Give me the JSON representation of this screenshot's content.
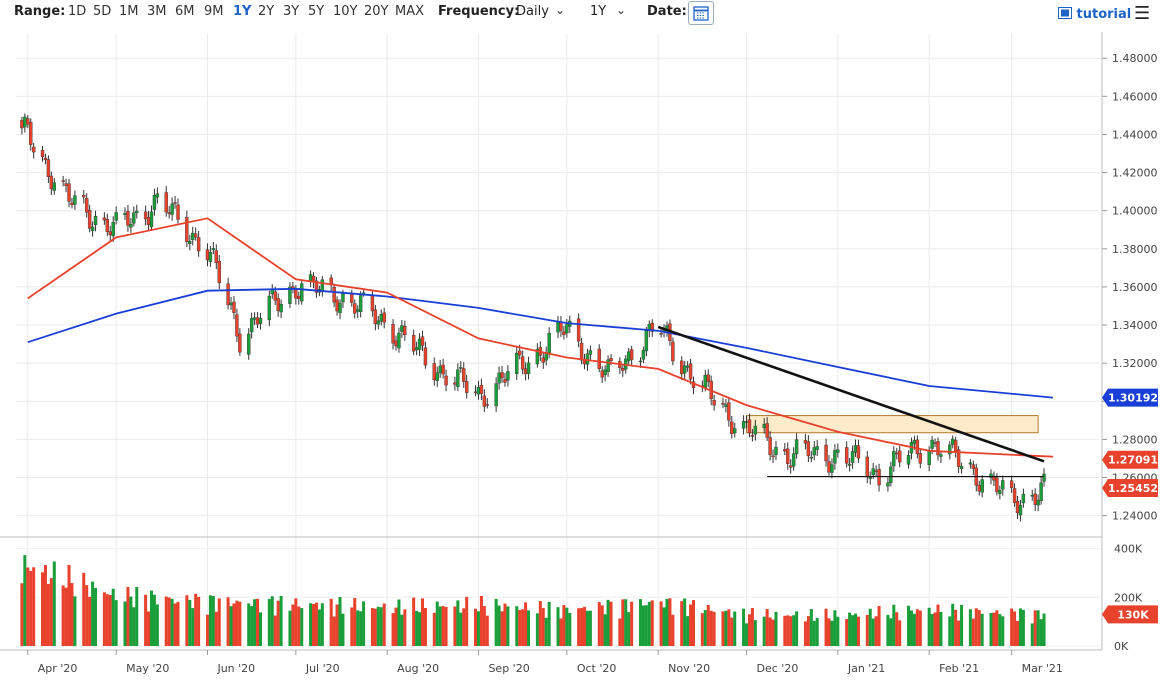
{
  "toolbar": {
    "range_label": "Range:",
    "ranges": [
      "1D",
      "5D",
      "1M",
      "3M",
      "6M",
      "9M",
      "1Y",
      "2Y",
      "3Y",
      "5Y",
      "10Y",
      "20Y",
      "MAX"
    ],
    "active_range": "1Y",
    "frequency_label": "Frequency:",
    "frequency_value": "Daily",
    "period_value": "1Y",
    "date_label": "Date:",
    "tutorial_label": "tutorial"
  },
  "colors": {
    "up": "#1a9e3a",
    "down": "#e8412c",
    "ma_fast": "#e8412c",
    "ma_slow": "#1a3fd6",
    "trendline": "#111111",
    "zone_fill": "#fde9c4",
    "zone_stroke": "#b07a2a",
    "price_badge_blue": "#1a3fd6",
    "price_badge_red": "#e8412c"
  },
  "chart_data": {
    "type": "candlestick",
    "x_axis": {
      "labels": [
        "Apr '20",
        "May '20",
        "Jun '20",
        "Jul '20",
        "Aug '20",
        "Sep '20",
        "Oct '20",
        "Nov '20",
        "Dec '20",
        "Jan '21",
        "Feb '21",
        "Mar '21"
      ]
    },
    "price_axis": {
      "ticks": [
        "1.48000",
        "1.46000",
        "1.44000",
        "1.42000",
        "1.40000",
        "1.38000",
        "1.36000",
        "1.34000",
        "1.32000",
        "1.30000",
        "1.28000",
        "1.26000",
        "1.24000"
      ],
      "ylim": [
        1.2288,
        1.4906
      ]
    },
    "volume_axis": {
      "ticks": [
        "400K",
        "200K",
        "0K"
      ],
      "ylim": [
        0,
        435000
      ]
    },
    "price_series": [
      {
        "date": "2020-04-01",
        "close": 1.44
      },
      {
        "date": "2020-04-15",
        "close": 1.405
      },
      {
        "date": "2020-05-01",
        "close": 1.39
      },
      {
        "date": "2020-05-15",
        "close": 1.405
      },
      {
        "date": "2020-06-01",
        "close": 1.38
      },
      {
        "date": "2020-06-12",
        "close": 1.335
      },
      {
        "date": "2020-07-01",
        "close": 1.361
      },
      {
        "date": "2020-07-15",
        "close": 1.356
      },
      {
        "date": "2020-08-01",
        "close": 1.341
      },
      {
        "date": "2020-08-15",
        "close": 1.321
      },
      {
        "date": "2020-09-01",
        "close": 1.303
      },
      {
        "date": "2020-09-15",
        "close": 1.318
      },
      {
        "date": "2020-10-01",
        "close": 1.338
      },
      {
        "date": "2020-10-15",
        "close": 1.313
      },
      {
        "date": "2020-11-01",
        "close": 1.339
      },
      {
        "date": "2020-11-15",
        "close": 1.308
      },
      {
        "date": "2020-12-01",
        "close": 1.285
      },
      {
        "date": "2020-12-15",
        "close": 1.272
      },
      {
        "date": "2021-01-01",
        "close": 1.272
      },
      {
        "date": "2021-01-15",
        "close": 1.262
      },
      {
        "date": "2021-02-01",
        "close": 1.279
      },
      {
        "date": "2021-02-15",
        "close": 1.265
      },
      {
        "date": "2021-03-01",
        "close": 1.248
      },
      {
        "date": "2021-03-15",
        "close": 1.2545
      }
    ],
    "ma_fast_points": [
      {
        "date": "2020-04-01",
        "value": 1.354
      },
      {
        "date": "2020-05-01",
        "value": 1.386
      },
      {
        "date": "2020-06-01",
        "value": 1.396
      },
      {
        "date": "2020-07-01",
        "value": 1.364
      },
      {
        "date": "2020-08-01",
        "value": 1.357
      },
      {
        "date": "2020-09-01",
        "value": 1.333
      },
      {
        "date": "2020-10-01",
        "value": 1.323
      },
      {
        "date": "2020-11-01",
        "value": 1.317
      },
      {
        "date": "2020-12-01",
        "value": 1.298
      },
      {
        "date": "2021-01-01",
        "value": 1.284
      },
      {
        "date": "2021-02-01",
        "value": 1.274
      },
      {
        "date": "2021-03-15",
        "value": 1.27091
      }
    ],
    "ma_slow_points": [
      {
        "date": "2020-04-01",
        "value": 1.331
      },
      {
        "date": "2020-05-01",
        "value": 1.346
      },
      {
        "date": "2020-06-01",
        "value": 1.358
      },
      {
        "date": "2020-07-01",
        "value": 1.359
      },
      {
        "date": "2020-08-01",
        "value": 1.355
      },
      {
        "date": "2020-09-01",
        "value": 1.349
      },
      {
        "date": "2020-10-01",
        "value": 1.341
      },
      {
        "date": "2020-11-01",
        "value": 1.337
      },
      {
        "date": "2020-12-01",
        "value": 1.328
      },
      {
        "date": "2021-01-01",
        "value": 1.318
      },
      {
        "date": "2021-02-01",
        "value": 1.308
      },
      {
        "date": "2021-03-15",
        "value": 1.30192
      }
    ],
    "trendline": {
      "from": [
        "2020-11-01",
        1.339
      ],
      "to": [
        "2021-03-12",
        1.2685
      ]
    },
    "support_line": {
      "from": [
        "2020-12-08",
        1.2605
      ],
      "to": [
        "2021-03-12",
        1.2605
      ]
    },
    "resistance_zone": {
      "from": "2020-12-01",
      "to": "2021-03-10",
      "y_low": 1.2835,
      "y_high": 1.2925
    },
    "volume_series": [
      {
        "date": "2020-04-01",
        "value": 330000
      },
      {
        "date": "2020-05-01",
        "value": 210000
      },
      {
        "date": "2020-06-01",
        "value": 185000
      },
      {
        "date": "2020-07-01",
        "value": 175000
      },
      {
        "date": "2020-08-01",
        "value": 160000
      },
      {
        "date": "2020-09-01",
        "value": 170000
      },
      {
        "date": "2020-10-01",
        "value": 150000
      },
      {
        "date": "2020-11-01",
        "value": 185000
      },
      {
        "date": "2020-12-01",
        "value": 130000
      },
      {
        "date": "2021-01-01",
        "value": 125000
      },
      {
        "date": "2021-02-01",
        "value": 150000
      },
      {
        "date": "2021-03-15",
        "value": 130000
      }
    ],
    "last_labels": {
      "ma_slow": "1.30192",
      "ma_fast": "1.27091",
      "price": "1.25452",
      "volume": "130K"
    }
  }
}
